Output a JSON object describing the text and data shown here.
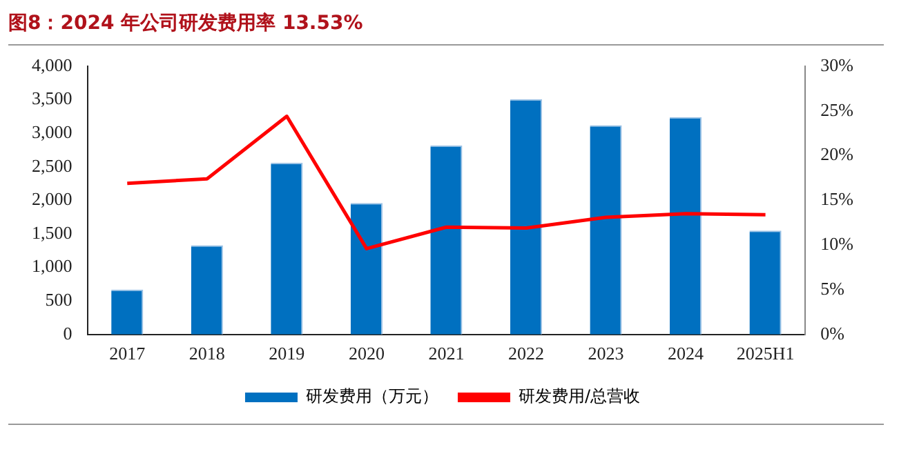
{
  "chart_data": {
    "type": "bar",
    "title": "图8：2024 年公司研发费用率 13.53%",
    "categories": [
      "2017",
      "2018",
      "2019",
      "2020",
      "2021",
      "2022",
      "2023",
      "2024",
      "2025H1"
    ],
    "series": [
      {
        "name": "研发费用（万元）",
        "color": "#0070c0",
        "values": [
          670,
          1330,
          2560,
          1960,
          2820,
          3510,
          3120,
          3240,
          1550
        ]
      },
      {
        "name": "研发费用/总营收",
        "type": "line",
        "axis": "y2",
        "color": "#ff0000",
        "values": [
          16.9,
          17.4,
          24.4,
          9.6,
          12.0,
          11.9,
          13.1,
          13.5,
          13.4
        ]
      }
    ],
    "ylim": [
      0,
      4000
    ],
    "yticks": [
      {
        "value": 0,
        "label": "0"
      },
      {
        "value": 500,
        "label": "500"
      },
      {
        "value": 1000,
        "label": "1,000"
      },
      {
        "value": 1500,
        "label": "1,500"
      },
      {
        "value": 2000,
        "label": "2,000"
      },
      {
        "value": 2500,
        "label": "2,500"
      },
      {
        "value": 3000,
        "label": "3,000"
      },
      {
        "value": 3500,
        "label": "3,500"
      },
      {
        "value": 4000,
        "label": "4,000"
      }
    ],
    "y2lim": [
      0,
      30
    ],
    "y2ticks": [
      {
        "value": 0,
        "label": "0%"
      },
      {
        "value": 5,
        "label": "5%"
      },
      {
        "value": 10,
        "label": "10%"
      },
      {
        "value": 15,
        "label": "15%"
      },
      {
        "value": 20,
        "label": "20%"
      },
      {
        "value": 25,
        "label": "25%"
      },
      {
        "value": 30,
        "label": "30%"
      }
    ],
    "legend": "bottom",
    "grid": false,
    "marker": "none",
    "line_style": "solid"
  }
}
